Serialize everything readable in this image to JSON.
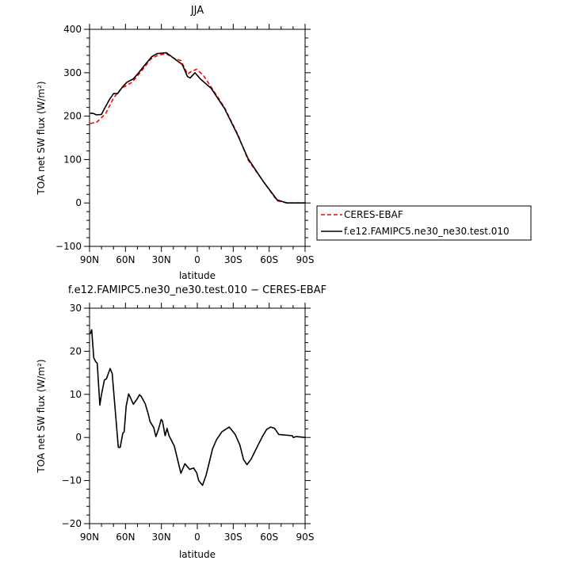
{
  "chart_data": [
    {
      "type": "line",
      "title": "JJA",
      "xlabel": "latitude",
      "ylabel": "TOA net SW flux (W/m²)",
      "xlim": [
        90,
        -90
      ],
      "ylim": [
        -100,
        400
      ],
      "xticks": [
        90,
        60,
        30,
        0,
        -30,
        -60,
        -90
      ],
      "xtick_labels": [
        "90N",
        "60N",
        "30N",
        "0",
        "30S",
        "60S",
        "90S"
      ],
      "yticks": [
        -100,
        0,
        100,
        200,
        300,
        400
      ],
      "ytick_labels": [
        "-100",
        "0",
        "100",
        "200",
        "300",
        "400"
      ],
      "grid": false,
      "legend": "right, outside",
      "series": [
        {
          "name": "CERES-EBAF",
          "color": "#ff0000",
          "style": "dashed",
          "x": [
            89.5,
            84,
            76.5,
            69.9,
            63.3,
            54.5,
            45.7,
            39.1,
            32.4,
            25.8,
            19.2,
            13.7,
            8.2,
            4.9,
            0.5,
            -5,
            -11.6,
            -22.6,
            -33.6,
            -42.4,
            -55.7,
            -66.7,
            -75,
            -90
          ],
          "y": [
            183,
            186,
            206,
            242,
            264,
            278,
            307,
            331,
            341,
            343,
            333,
            328,
            297,
            303,
            308,
            294,
            267,
            220,
            159,
            99,
            47,
            5,
            0,
            0
          ]
        },
        {
          "name": "f.e12.FAMIPC5.ne30_ne30.test.010",
          "color": "#000000",
          "style": "solid",
          "x": [
            89.5,
            86.5,
            84.3,
            80,
            77.6,
            73.2,
            69.9,
            66.6,
            62.2,
            58.9,
            53.4,
            49,
            43.5,
            38,
            33.6,
            25.8,
            21.4,
            17,
            12.6,
            8.2,
            6,
            2,
            -2.8,
            -11.6,
            -22.6,
            -33.6,
            -42.4,
            -55.7,
            -66.7,
            -75,
            -90
          ],
          "y": [
            207,
            206,
            203,
            204,
            217,
            239,
            252,
            252,
            268,
            278,
            286,
            300,
            319,
            337,
            344,
            346,
            337,
            328,
            319,
            291,
            288,
            300,
            285,
            264,
            218,
            157,
            102,
            47,
            7,
            0,
            0
          ]
        }
      ]
    },
    {
      "type": "line",
      "title": "f.e12.FAMIPC5.ne30_ne30.test.010  −  CERES-EBAF",
      "xlabel": "latitude",
      "ylabel": "TOA net SW flux (W/m²)",
      "xlim": [
        90,
        -90
      ],
      "ylim": [
        -20,
        30
      ],
      "xticks": [
        90,
        60,
        30,
        0,
        -30,
        -60,
        -90
      ],
      "xtick_labels": [
        "90N",
        "60N",
        "30N",
        "0",
        "30S",
        "60S",
        "90S"
      ],
      "yticks": [
        -20,
        -10,
        0,
        10,
        20,
        30
      ],
      "ytick_labels": [
        "-20",
        "-10",
        "0",
        "10",
        "20",
        "30"
      ],
      "grid": false,
      "series": [
        {
          "color": "#000000",
          "style": "solid",
          "x": [
            89.5,
            88.2,
            86.5,
            84.9,
            83.6,
            81.4,
            80.3,
            77.6,
            75.9,
            72.8,
            71.1,
            66.0,
            64.4,
            62.2,
            61.1,
            59.4,
            57.4,
            56.1,
            53.4,
            50.1,
            48.3,
            46.8,
            43.5,
            40.8,
            39.5,
            36.4,
            34.6,
            32.4,
            30.2,
            29.1,
            26.9,
            25.3,
            23.6,
            19.2,
            13.7,
            10.4,
            6.4,
            3.1,
            0.5,
            -1.1,
            -4.4,
            -7.3,
            -9.5,
            -12.8,
            -16.1,
            -20.5,
            -26.7,
            -31.6,
            -35.5,
            -38.6,
            -41.5,
            -44.8,
            -51.4,
            -54.7,
            -58.0,
            -61.3,
            -64.6,
            -68.0,
            -79.3,
            -80,
            -82.6,
            -90
          ],
          "y": [
            24.0,
            25.0,
            18.5,
            17.6,
            17.2,
            7.5,
            9.6,
            13.3,
            13.6,
            16.0,
            14.8,
            -2.3,
            -2.3,
            1.0,
            1.3,
            7.2,
            10.1,
            9.4,
            7.7,
            9.0,
            9.9,
            9.5,
            7.8,
            5.3,
            3.7,
            2.3,
            0.2,
            1.9,
            4.2,
            3.8,
            0.4,
            2.1,
            0.4,
            -2.0,
            -8.3,
            -6.1,
            -7.4,
            -7.1,
            -8.2,
            -10.0,
            -11.1,
            -8.8,
            -6.3,
            -2.6,
            -0.5,
            1.3,
            2.4,
            0.7,
            -1.7,
            -5.1,
            -6.3,
            -5.1,
            -1.4,
            0.4,
            1.9,
            2.4,
            2.1,
            0.7,
            0.4,
            0.0,
            0.2,
            0.0
          ]
        }
      ]
    }
  ]
}
